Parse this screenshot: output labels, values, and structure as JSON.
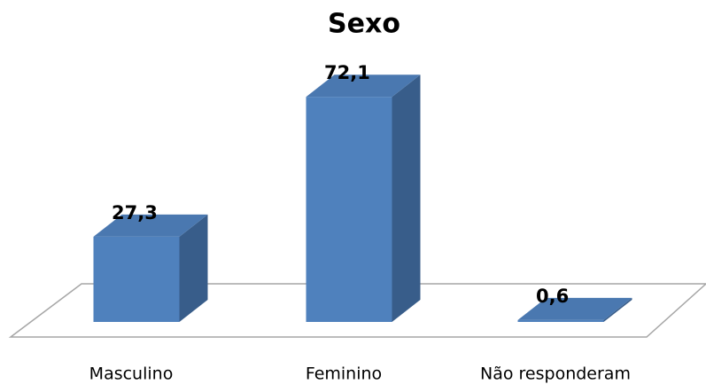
{
  "chart_data": {
    "type": "bar3d",
    "title": "Sexo",
    "categories": [
      "Masculino",
      "Feminino",
      "Não responderam"
    ],
    "values": [
      27.3,
      72.1,
      0.6
    ],
    "value_labels": [
      "27,3",
      "72,1",
      "0,6"
    ],
    "color": "#4f81bd"
  }
}
